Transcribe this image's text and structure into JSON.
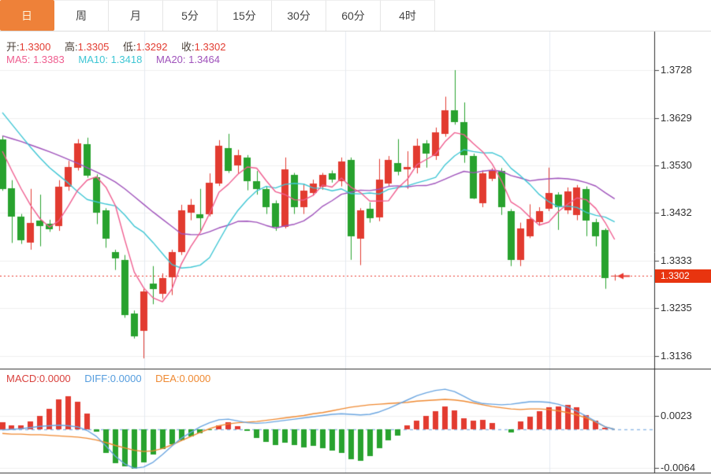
{
  "tabs": {
    "items": [
      {
        "label": "日",
        "active": true
      },
      {
        "label": "周",
        "active": false
      },
      {
        "label": "月",
        "active": false
      },
      {
        "label": "5分",
        "active": false
      },
      {
        "label": "15分",
        "active": false
      },
      {
        "label": "30分",
        "active": false
      },
      {
        "label": "60分",
        "active": false
      },
      {
        "label": "4时",
        "active": false
      }
    ]
  },
  "info_bar": {
    "open_label": "开:",
    "open": "1.3300",
    "high_label": "高:",
    "high": "1.3305",
    "low_label": "低:",
    "low": "1.3292",
    "close_label": "收:",
    "close": "1.3302",
    "ma5_label": "MA5:",
    "ma5": "1.3383",
    "ma10_label": "MA10:",
    "ma10": "1.3418",
    "ma20_label": "MA20:",
    "ma20": "1.3464"
  },
  "macd_bar": {
    "macd_label": "MACD:",
    "macd": "0.0000",
    "diff_label": "DIFF:",
    "diff": "0.0000",
    "dea_label": "DEA:",
    "dea": "0.0000"
  },
  "price_axis": {
    "ticks": [
      "1.3728",
      "1.3629",
      "1.3530",
      "1.3432",
      "1.3333",
      "1.3235",
      "1.3136"
    ],
    "current_badge": "1.3302"
  },
  "macd_axis": {
    "ticks": [
      "0.0023",
      "-0.0064"
    ]
  },
  "colors": {
    "up": "#e23b30",
    "down": "#28a22e",
    "ma5": "#ef5d8f",
    "ma10": "#3ec6d4",
    "ma20": "#9f52bb",
    "diff_line": "#6aa5e0",
    "dea_line": "#ef8a33",
    "tab_active": "#ee8139",
    "badge": "#e8340f",
    "grid": "#efefef",
    "vgrid": "#e4eaf0",
    "axis": "#333333",
    "dotted": "#e8392f",
    "zero_dash": "#90b9e6"
  },
  "chart_data": {
    "type": "candlestick_with_macd",
    "title": "",
    "price_ticks": [
      1.3728,
      1.3629,
      1.353,
      1.3432,
      1.3333,
      1.3235,
      1.3136
    ],
    "current_price": 1.3302,
    "ohlc": {
      "open": 1.33,
      "high": 1.3305,
      "low": 1.3292,
      "close": 1.3302
    },
    "ma_values": {
      "ma5": 1.3383,
      "ma10": 1.3418,
      "ma20": 1.3464
    },
    "axes": {
      "price_min": 1.3136,
      "price_max": 1.3728,
      "macd_max": 0.0023,
      "macd_min": -0.0064,
      "grid": true
    },
    "candles": [
      [
        1.3585,
        1.3592,
        1.3478,
        1.3483
      ],
      [
        1.3483,
        1.35,
        1.337,
        1.3424
      ],
      [
        1.3424,
        1.343,
        1.3368,
        1.3375
      ],
      [
        1.3371,
        1.3482,
        1.3356,
        1.3412
      ],
      [
        1.3417,
        1.347,
        1.3363,
        1.3406
      ],
      [
        1.341,
        1.3418,
        1.3393,
        1.3398
      ],
      [
        1.3405,
        1.35,
        1.3395,
        1.3487
      ],
      [
        1.3487,
        1.354,
        1.3478,
        1.3528
      ],
      [
        1.3527,
        1.3585,
        1.352,
        1.3577
      ],
      [
        1.3575,
        1.3588,
        1.3505,
        1.351
      ],
      [
        1.3506,
        1.3512,
        1.3409,
        1.3433
      ],
      [
        1.3438,
        1.3442,
        1.336,
        1.3379
      ],
      [
        1.3351,
        1.3356,
        1.3314,
        1.3338
      ],
      [
        1.3335,
        1.3345,
        1.3215,
        1.3221
      ],
      [
        1.3224,
        1.323,
        1.3172,
        1.3177
      ],
      [
        1.3188,
        1.3275,
        1.3131,
        1.327
      ],
      [
        1.3286,
        1.3322,
        1.3243,
        1.3275
      ],
      [
        1.3265,
        1.3307,
        1.3254,
        1.3298
      ],
      [
        1.3298,
        1.3356,
        1.3262,
        1.3351
      ],
      [
        1.3351,
        1.3449,
        1.3345,
        1.3438
      ],
      [
        1.3433,
        1.3461,
        1.3417,
        1.3449
      ],
      [
        1.343,
        1.3482,
        1.3395,
        1.3422
      ],
      [
        1.343,
        1.3514,
        1.3425,
        1.3495
      ],
      [
        1.3493,
        1.3583,
        1.3488,
        1.3572
      ],
      [
        1.3567,
        1.3596,
        1.3515,
        1.352
      ],
      [
        1.3531,
        1.3563,
        1.3514,
        1.3552
      ],
      [
        1.3547,
        1.3552,
        1.3479,
        1.3498
      ],
      [
        1.3498,
        1.3519,
        1.347,
        1.3482
      ],
      [
        1.3482,
        1.3487,
        1.343,
        1.3444
      ],
      [
        1.3453,
        1.3458,
        1.3395,
        1.3404
      ],
      [
        1.3404,
        1.3547,
        1.34,
        1.3523
      ],
      [
        1.3511,
        1.3515,
        1.343,
        1.3444
      ],
      [
        1.3444,
        1.3493,
        1.343,
        1.3479
      ],
      [
        1.3474,
        1.3501,
        1.3468,
        1.3493
      ],
      [
        1.3487,
        1.3515,
        1.348,
        1.3511
      ],
      [
        1.3514,
        1.352,
        1.3495,
        1.3501
      ],
      [
        1.3498,
        1.3547,
        1.3487,
        1.3539
      ],
      [
        1.3542,
        1.3547,
        1.3335,
        1.3384
      ],
      [
        1.3379,
        1.3442,
        1.3324,
        1.3438
      ],
      [
        1.3441,
        1.3454,
        1.3412,
        1.3422
      ],
      [
        1.3422,
        1.3544,
        1.3415,
        1.3501
      ],
      [
        1.3493,
        1.355,
        1.3487,
        1.3542
      ],
      [
        1.3535,
        1.3585,
        1.351,
        1.3517
      ],
      [
        1.3523,
        1.356,
        1.3482,
        1.3528
      ],
      [
        1.3526,
        1.3586,
        1.3514,
        1.3572
      ],
      [
        1.3577,
        1.3583,
        1.3526,
        1.3555
      ],
      [
        1.355,
        1.3609,
        1.3542,
        1.3599
      ],
      [
        1.3596,
        1.3673,
        1.359,
        1.3645
      ],
      [
        1.3645,
        1.3728,
        1.3615,
        1.3621
      ],
      [
        1.3621,
        1.3661,
        1.3536,
        1.3552
      ],
      [
        1.355,
        1.3555,
        1.3461,
        1.3462
      ],
      [
        1.3452,
        1.352,
        1.3444,
        1.3514
      ],
      [
        1.3503,
        1.3525,
        1.3498,
        1.3519
      ],
      [
        1.3519,
        1.3525,
        1.3428,
        1.3444
      ],
      [
        1.3436,
        1.344,
        1.3322,
        1.3335
      ],
      [
        1.3335,
        1.3412,
        1.3322,
        1.34
      ],
      [
        1.3384,
        1.345,
        1.338,
        1.342
      ],
      [
        1.3413,
        1.3444,
        1.3406,
        1.3436
      ],
      [
        1.3441,
        1.3526,
        1.3436,
        1.3474
      ],
      [
        1.347,
        1.3475,
        1.3397,
        1.3444
      ],
      [
        1.3438,
        1.3485,
        1.343,
        1.3477
      ],
      [
        1.3428,
        1.349,
        1.3417,
        1.3485
      ],
      [
        1.3482,
        1.3487,
        1.3384,
        1.3417
      ],
      [
        1.3413,
        1.342,
        1.3363,
        1.3384
      ],
      [
        1.3397,
        1.34,
        1.3275,
        1.3298
      ],
      [
        1.33,
        1.3305,
        1.3292,
        1.3302
      ]
    ],
    "ma_seeds": {
      "ma5": [
        1.356,
        1.352,
        1.3482,
        1.3448
      ],
      "ma10": [
        1.364,
        1.3616,
        1.3592,
        1.3568,
        1.3546,
        1.3526,
        1.351,
        1.3494,
        1.3476
      ],
      "ma20": [
        1.3592,
        1.3586,
        1.358,
        1.3573,
        1.3566,
        1.3559,
        1.3551,
        1.3543,
        1.3535,
        1.3526,
        1.3517,
        1.3507,
        1.3496,
        1.3482,
        1.3466,
        1.345,
        1.3434,
        1.3419,
        1.3404
      ]
    },
    "macd": {
      "hist": [
        0.0012,
        0.0007,
        0.0006,
        0.0013,
        0.0022,
        0.0034,
        0.005,
        0.0055,
        0.0046,
        0.0026,
        -0.0004,
        -0.004,
        -0.0056,
        -0.0062,
        -0.0066,
        -0.0055,
        -0.0042,
        -0.0033,
        -0.0025,
        -0.0018,
        -0.0012,
        -0.0006,
        -0.0001,
        0.0007,
        0.0012,
        0.0005,
        -0.0002,
        -0.0014,
        -0.0021,
        -0.0026,
        -0.0022,
        -0.0026,
        -0.003,
        -0.0028,
        -0.0032,
        -0.0036,
        -0.004,
        -0.005,
        -0.0053,
        -0.0045,
        -0.0032,
        -0.0018,
        -0.001,
        0.0006,
        0.0014,
        0.0022,
        0.003,
        0.0038,
        0.0031,
        0.0019,
        0.0014,
        0.0016,
        0.0011,
        0.0,
        -0.0005,
        0.0013,
        0.0021,
        0.003,
        0.0037,
        0.0038,
        0.0041,
        0.0037,
        0.0024,
        0.0015,
        0.0003,
        0.0
      ],
      "diff": [
        -0.0001,
        0.0,
        0.0001,
        0.0003,
        0.0005,
        0.0006,
        0.0007,
        0.0006,
        0.0004,
        -0.0002,
        -0.0012,
        -0.0028,
        -0.0045,
        -0.0058,
        -0.0065,
        -0.0063,
        -0.0055,
        -0.0042,
        -0.0028,
        -0.0015,
        -0.0005,
        0.0004,
        0.0011,
        0.0016,
        0.0017,
        0.0014,
        0.0011,
        0.001,
        0.0011,
        0.0013,
        0.0015,
        0.0017,
        0.0019,
        0.0021,
        0.0023,
        0.0025,
        0.0026,
        0.0025,
        0.0024,
        0.0025,
        0.0029,
        0.0035,
        0.0042,
        0.0049,
        0.0056,
        0.0061,
        0.0065,
        0.0067,
        0.0063,
        0.0055,
        0.0047,
        0.0043,
        0.0042,
        0.0041,
        0.0042,
        0.0044,
        0.0046,
        0.0046,
        0.0045,
        0.0042,
        0.0037,
        0.003,
        0.0022,
        0.0013,
        0.0004,
        0.0
      ],
      "dea": [
        -0.0007,
        -0.0008,
        -0.0008,
        -0.0009,
        -0.0009,
        -0.001,
        -0.0011,
        -0.0012,
        -0.0013,
        -0.0015,
        -0.0018,
        -0.0022,
        -0.0027,
        -0.0031,
        -0.0035,
        -0.0037,
        -0.0036,
        -0.0032,
        -0.0026,
        -0.0019,
        -0.0012,
        -0.0005,
        0.0001,
        0.0006,
        0.0009,
        0.0011,
        0.0012,
        0.0013,
        0.0015,
        0.0017,
        0.0019,
        0.0021,
        0.0023,
        0.0026,
        0.0028,
        0.0031,
        0.0034,
        0.0037,
        0.0039,
        0.0041,
        0.0042,
        0.0043,
        0.0044,
        0.0045,
        0.0047,
        0.0048,
        0.0049,
        0.005,
        0.0049,
        0.0047,
        0.0044,
        0.0041,
        0.0038,
        0.0036,
        0.0034,
        0.0033,
        0.0034,
        0.0034,
        0.0033,
        0.0031,
        0.0028,
        0.0024,
        0.0019,
        0.0012,
        0.0004,
        0.0
      ],
      "values": {
        "macd": 0.0,
        "diff": 0.0,
        "dea": 0.0
      }
    },
    "legend": [
      "MA5",
      "MA10",
      "MA20",
      "MACD",
      "DIFF",
      "DEA"
    ]
  }
}
